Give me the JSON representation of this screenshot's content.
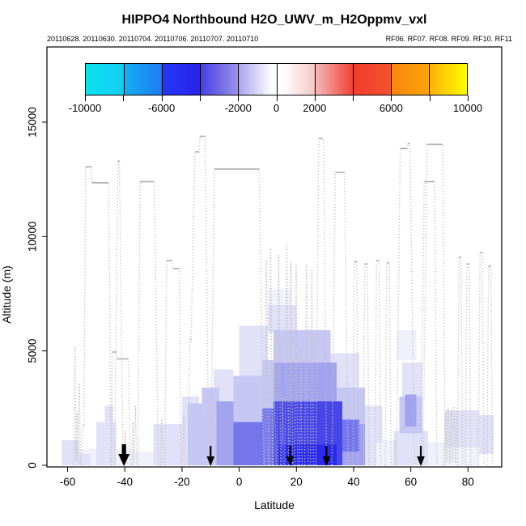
{
  "title": "HIPPO4 Northbound H2O_UWV_m_H2Oppmv_vxl",
  "subtitle_dates": "20110628. 20110630. 20110704. 20110706. 20110707. 20110710",
  "subtitle_flights": "RF06. RF07. RF08. RF09. RF10. RF11",
  "chart_data": {
    "type": "heatmap",
    "xlabel": "Latitude",
    "ylabel": "Altitude (m)",
    "x_ticks": [
      -60,
      -40,
      -20,
      0,
      20,
      40,
      60,
      80
    ],
    "y_ticks": [
      0,
      5000,
      10000,
      15000
    ],
    "x_range": [
      -67.2,
      91.8
    ],
    "y_range_m": [
      0,
      18300
    ],
    "grid": false,
    "legend_position": "top-inside",
    "colorbar": {
      "min": -10000,
      "max": 10000,
      "tick_step": 2000,
      "labeled_values": [
        -10000,
        -6000,
        -2000,
        0,
        2000,
        6000,
        10000
      ],
      "gradient_stops": [
        [
          0,
          "#0AE2EF"
        ],
        [
          9.8,
          "#12CDF3"
        ],
        [
          10.2,
          "#17ADF6"
        ],
        [
          19.8,
          "#1C7CF3"
        ],
        [
          20.2,
          "#2338F3"
        ],
        [
          29.8,
          "#2823EF"
        ],
        [
          30.2,
          "#4A3FE3"
        ],
        [
          39.8,
          "#9A92EA"
        ],
        [
          40.2,
          "#ABA5ED"
        ],
        [
          48.5,
          "#FAFAFE"
        ],
        [
          51.5,
          "#FFFFFF"
        ],
        [
          53,
          "#FFF6F6"
        ],
        [
          59.8,
          "#F7C9C9"
        ],
        [
          60.2,
          "#F5BABA"
        ],
        [
          69.8,
          "#F24539"
        ],
        [
          70.2,
          "#F23C2C"
        ],
        [
          79.8,
          "#F1532D"
        ],
        [
          80.2,
          "#F8860E"
        ],
        [
          89.8,
          "#F9A306"
        ],
        [
          90.2,
          "#FAB205"
        ],
        [
          100,
          "#FEFE00"
        ]
      ]
    },
    "track_color": "#C3C3C3",
    "plateau_color": "#B6B6B6",
    "track_style": "dotted",
    "flight_track_profiles": [
      [
        [
          -57.8,
          0
        ],
        [
          -57.4,
          5200
        ],
        [
          -57.1,
          200
        ],
        [
          -56.7,
          2300
        ],
        [
          -56.3,
          100
        ],
        [
          -55.9,
          3600
        ],
        [
          -55.5,
          0
        ]
      ],
      [
        [
          -55.2,
          0
        ],
        [
          -54.6,
          1800
        ],
        [
          -54.3,
          1700
        ],
        [
          -53.7,
          13050
        ],
        [
          -51.7,
          13050
        ],
        [
          -51.5,
          12350
        ],
        [
          -45.7,
          12350
        ],
        [
          -45.3,
          8000
        ],
        [
          -44.9,
          0
        ]
      ],
      [
        [
          -44.7,
          0
        ],
        [
          -44.4,
          4950
        ],
        [
          -43.0,
          4950
        ],
        [
          -42.7,
          4650
        ],
        [
          -38.8,
          4650
        ],
        [
          -38.4,
          2300
        ],
        [
          -38.1,
          0
        ]
      ],
      [
        [
          -43.6,
          0
        ],
        [
          -42.4,
          13300
        ],
        [
          -41.9,
          13300
        ],
        [
          -40.6,
          0
        ]
      ],
      [
        [
          -40.2,
          0
        ],
        [
          -39.8,
          1500
        ],
        [
          -39.4,
          0
        ]
      ],
      [
        [
          -37.6,
          0
        ],
        [
          -37.2,
          1900
        ],
        [
          -36.8,
          0
        ],
        [
          -36.3,
          2600
        ],
        [
          -35.8,
          0
        ]
      ],
      [
        [
          -35.4,
          0
        ],
        [
          -34.7,
          12400
        ],
        [
          -29.7,
          12400
        ],
        [
          -28.3,
          0
        ]
      ],
      [
        [
          -27.6,
          0
        ],
        [
          -27.1,
          2100
        ],
        [
          -26.6,
          0
        ]
      ],
      [
        [
          -26.0,
          0
        ],
        [
          -25.4,
          8950
        ],
        [
          -23.5,
          8950
        ],
        [
          -23.3,
          8600
        ],
        [
          -20.9,
          8600
        ],
        [
          -20.4,
          0
        ]
      ],
      [
        [
          -19.9,
          0
        ],
        [
          -19.4,
          2200
        ],
        [
          -18.9,
          0
        ]
      ],
      [
        [
          -17.9,
          0
        ],
        [
          -17.2,
          5600
        ],
        [
          -16.8,
          5400
        ],
        [
          -15.5,
          13700
        ],
        [
          -14.0,
          13700
        ],
        [
          -13.7,
          14380
        ],
        [
          -12.0,
          14380
        ],
        [
          -11.3,
          7500
        ],
        [
          -10.7,
          0
        ]
      ],
      [
        [
          -9.9,
          0
        ],
        [
          -8.7,
          12950
        ],
        [
          7.0,
          12950
        ],
        [
          8.6,
          0
        ]
      ],
      [
        [
          9.0,
          0
        ],
        [
          9.5,
          9000
        ],
        [
          10.1,
          0
        ]
      ],
      [
        [
          10.5,
          0
        ],
        [
          11.0,
          9500
        ],
        [
          11.7,
          0
        ]
      ],
      [
        [
          12.0,
          0
        ],
        [
          12.4,
          4500
        ],
        [
          12.8,
          0
        ]
      ],
      [
        [
          13.2,
          0
        ],
        [
          13.8,
          9200
        ],
        [
          14.5,
          0
        ]
      ],
      [
        [
          14.8,
          0
        ],
        [
          15.2,
          3000
        ],
        [
          15.6,
          0
        ]
      ],
      [
        [
          16.0,
          0
        ],
        [
          16.6,
          9700
        ],
        [
          17.3,
          0
        ]
      ],
      [
        [
          17.6,
          0
        ],
        [
          18.1,
          8900
        ],
        [
          18.7,
          0
        ]
      ],
      [
        [
          19.4,
          0
        ],
        [
          19.9,
          8800
        ],
        [
          20.5,
          0
        ]
      ],
      [
        [
          21.1,
          0
        ],
        [
          21.6,
          5200
        ],
        [
          22.0,
          0
        ]
      ],
      [
        [
          22.9,
          0
        ],
        [
          23.5,
          8800
        ],
        [
          24.1,
          0
        ]
      ],
      [
        [
          24.9,
          0
        ],
        [
          25.4,
          8600
        ],
        [
          26.0,
          0
        ]
      ],
      [
        [
          26.8,
          0
        ],
        [
          27.8,
          14280
        ],
        [
          29.3,
          14280
        ],
        [
          29.6,
          13850
        ],
        [
          30.5,
          0
        ]
      ],
      [
        [
          32.4,
          0
        ],
        [
          33.6,
          12800
        ],
        [
          36.8,
          12800
        ],
        [
          38.1,
          0
        ]
      ],
      [
        [
          39.8,
          0
        ],
        [
          40.2,
          8900
        ],
        [
          41.1,
          8900
        ],
        [
          41.7,
          0
        ]
      ],
      [
        [
          43.4,
          0
        ],
        [
          43.9,
          8800
        ],
        [
          44.8,
          8800
        ],
        [
          45.4,
          0
        ]
      ],
      [
        [
          47.5,
          0
        ],
        [
          48.0,
          8950
        ],
        [
          48.9,
          8950
        ],
        [
          49.5,
          0
        ]
      ],
      [
        [
          51.1,
          0
        ],
        [
          51.6,
          8850
        ],
        [
          52.5,
          8850
        ],
        [
          53.1,
          0
        ]
      ],
      [
        [
          54.0,
          0
        ],
        [
          54.4,
          1100
        ],
        [
          54.8,
          0
        ]
      ],
      [
        [
          55.0,
          0
        ],
        [
          56.3,
          13850
        ],
        [
          58.7,
          13850
        ],
        [
          58.9,
          14060
        ],
        [
          59.7,
          14060
        ],
        [
          60.8,
          4000
        ],
        [
          61.4,
          0
        ]
      ],
      [
        [
          63.6,
          0
        ],
        [
          64.7,
          12400
        ],
        [
          68.3,
          12400
        ],
        [
          69.1,
          0
        ]
      ],
      [
        [
          64.3,
          0
        ],
        [
          65.7,
          14030
        ],
        [
          71.2,
          14030
        ],
        [
          72.0,
          0
        ]
      ],
      [
        [
          71.6,
          0
        ],
        [
          72.1,
          2300
        ],
        [
          72.6,
          150
        ],
        [
          73.1,
          2500
        ],
        [
          73.6,
          100
        ],
        [
          74.1,
          2450
        ],
        [
          74.6,
          150
        ],
        [
          75.1,
          2600
        ],
        [
          75.6,
          100
        ],
        [
          76.1,
          2500
        ],
        [
          76.5,
          0
        ]
      ],
      [
        [
          76.4,
          0
        ],
        [
          76.9,
          9100
        ],
        [
          77.6,
          9100
        ],
        [
          78.1,
          0
        ]
      ],
      [
        [
          79.1,
          0
        ],
        [
          79.6,
          8800
        ],
        [
          80.4,
          8800
        ],
        [
          81.0,
          0
        ]
      ],
      [
        [
          83.6,
          0
        ],
        [
          84.2,
          9300
        ],
        [
          85.0,
          9300
        ],
        [
          85.6,
          0
        ]
      ],
      [
        [
          86.6,
          0
        ],
        [
          87.2,
          8700
        ],
        [
          88.0,
          8700
        ],
        [
          88.5,
          0
        ]
      ]
    ],
    "plateau_segments": [
      [
        -53.7,
        -51.7,
        13050
      ],
      [
        -51.5,
        -45.7,
        12350
      ],
      [
        -44.4,
        -43.0,
        4950
      ],
      [
        -42.7,
        -38.8,
        4650
      ],
      [
        -42.4,
        -41.9,
        13300
      ],
      [
        -34.7,
        -29.7,
        12400
      ],
      [
        -25.4,
        -23.5,
        8950
      ],
      [
        -23.3,
        -20.9,
        8600
      ],
      [
        -15.5,
        -14.0,
        13700
      ],
      [
        -13.7,
        -12.0,
        14380
      ],
      [
        -8.7,
        7.0,
        12950
      ],
      [
        27.8,
        29.3,
        14280
      ],
      [
        33.6,
        36.8,
        12800
      ],
      [
        40.2,
        41.1,
        8900
      ],
      [
        43.9,
        44.8,
        8800
      ],
      [
        48.0,
        48.9,
        8950
      ],
      [
        51.6,
        52.5,
        8850
      ],
      [
        56.3,
        58.7,
        13850
      ],
      [
        58.9,
        59.7,
        14060
      ],
      [
        64.7,
        68.3,
        12400
      ],
      [
        65.7,
        71.2,
        14030
      ],
      [
        76.9,
        77.6,
        9100
      ],
      [
        79.6,
        80.4,
        8800
      ],
      [
        84.2,
        85.0,
        9300
      ],
      [
        87.2,
        88.0,
        8700
      ]
    ],
    "waypoint_arrows": [
      {
        "lat": -40.3,
        "bold": true
      },
      {
        "lat": -10.0,
        "bold": false
      },
      {
        "lat": 17.8,
        "bold": false
      },
      {
        "lat": 30.5,
        "bold": false
      },
      {
        "lat": 63.5,
        "bold": false
      }
    ],
    "intensity_colors": [
      "#F1F1FB",
      "#E1E1F8",
      "#C7C7F3",
      "#A2A2EF",
      "#7575EC",
      "#4646E9",
      "#2B2BEE"
    ],
    "heatmap_blobs": [
      [
        -62,
        -36,
        0,
        700,
        1
      ],
      [
        -62,
        -56,
        0,
        1100,
        2
      ],
      [
        -57,
        -52,
        0,
        500,
        2
      ],
      [
        -50,
        -43,
        0,
        1900,
        2
      ],
      [
        -47,
        -44,
        0,
        2600,
        2
      ],
      [
        -36,
        -30,
        0,
        600,
        1
      ],
      [
        -30,
        -18,
        0,
        1800,
        2
      ],
      [
        -20,
        -14,
        0,
        3000,
        2
      ],
      [
        -18,
        -8,
        0,
        2700,
        3
      ],
      [
        -13,
        -7,
        800,
        3400,
        3
      ],
      [
        -9,
        -2,
        2800,
        4200,
        2
      ],
      [
        -8,
        -2,
        0,
        2800,
        4
      ],
      [
        -2,
        8,
        1800,
        3900,
        3
      ],
      [
        -2,
        8,
        0,
        1900,
        5
      ],
      [
        0,
        10,
        3900,
        6100,
        2
      ],
      [
        8,
        12,
        2500,
        4600,
        3
      ],
      [
        8,
        12,
        0,
        2500,
        5
      ],
      [
        10,
        20,
        5800,
        7000,
        2
      ],
      [
        10,
        18,
        7000,
        7700,
        1
      ],
      [
        12,
        32,
        4500,
        5900,
        3
      ],
      [
        12,
        34,
        2800,
        4500,
        4
      ],
      [
        12,
        36,
        0,
        2800,
        6
      ],
      [
        14,
        34,
        0,
        900,
        7
      ],
      [
        30,
        42,
        3400,
        4900,
        2
      ],
      [
        34,
        44,
        1800,
        3400,
        3
      ],
      [
        36,
        44,
        0,
        1800,
        4
      ],
      [
        36,
        42,
        600,
        2000,
        5
      ],
      [
        42,
        50,
        1000,
        2600,
        2
      ],
      [
        44,
        48,
        0,
        1000,
        2
      ],
      [
        46,
        54,
        0,
        1100,
        1
      ],
      [
        54,
        66,
        0,
        1500,
        2
      ],
      [
        55,
        62,
        4600,
        5900,
        1
      ],
      [
        56,
        64,
        1400,
        3000,
        3
      ],
      [
        57,
        64,
        2900,
        4500,
        2
      ],
      [
        58,
        62,
        1700,
        3100,
        4
      ],
      [
        64,
        72,
        0,
        1000,
        1
      ],
      [
        72,
        84,
        0,
        800,
        1
      ],
      [
        72,
        84,
        800,
        2400,
        2
      ],
      [
        84,
        89,
        500,
        2200,
        2
      ]
    ]
  }
}
